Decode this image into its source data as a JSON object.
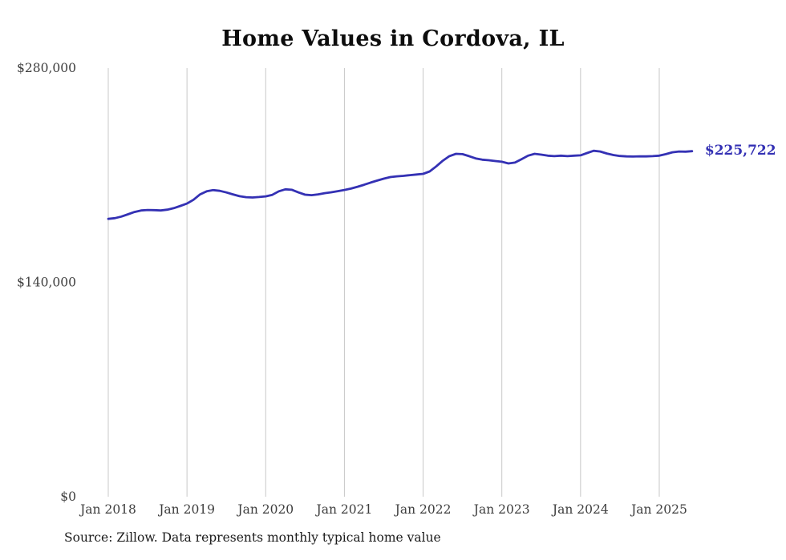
{
  "title": "Home Values in Cordova, IL",
  "end_label": "$225,722",
  "source_note": "Source: Zillow. Data represents monthly typical home value",
  "colors": {
    "line": "#3431b4",
    "grid": "#c8c8c8",
    "axis_text": "#3d3d3d",
    "title_text": "#0d0d0d"
  },
  "chart_data": {
    "type": "line",
    "title": "Home Values in Cordova, IL",
    "xlabel": "",
    "ylabel": "",
    "ylim": [
      0,
      280000
    ],
    "yticks": [
      0,
      140000,
      280000
    ],
    "ytick_labels": [
      "$0",
      "$140,000",
      "$280,000"
    ],
    "xtick_labels": [
      "Jan 2018",
      "Jan 2019",
      "Jan 2020",
      "Jan 2021",
      "Jan 2022",
      "Jan 2023",
      "Jan 2024",
      "Jan 2025"
    ],
    "grid": "vertical-only",
    "legend": "none",
    "annotation": {
      "text": "$225,722",
      "position": "end-of-line"
    },
    "x": [
      "2018-01",
      "2018-02",
      "2018-03",
      "2018-04",
      "2018-05",
      "2018-06",
      "2018-07",
      "2018-08",
      "2018-09",
      "2018-10",
      "2018-11",
      "2018-12",
      "2019-01",
      "2019-02",
      "2019-03",
      "2019-04",
      "2019-05",
      "2019-06",
      "2019-07",
      "2019-08",
      "2019-09",
      "2019-10",
      "2019-11",
      "2019-12",
      "2020-01",
      "2020-02",
      "2020-03",
      "2020-04",
      "2020-05",
      "2020-06",
      "2020-07",
      "2020-08",
      "2020-09",
      "2020-10",
      "2020-11",
      "2020-12",
      "2021-01",
      "2021-02",
      "2021-03",
      "2021-04",
      "2021-05",
      "2021-06",
      "2021-07",
      "2021-08",
      "2021-09",
      "2021-10",
      "2021-11",
      "2021-12",
      "2022-01",
      "2022-02",
      "2022-03",
      "2022-04",
      "2022-05",
      "2022-06",
      "2022-07",
      "2022-08",
      "2022-09",
      "2022-10",
      "2022-11",
      "2022-12",
      "2023-01",
      "2023-02",
      "2023-03",
      "2023-04",
      "2023-05",
      "2023-06",
      "2023-07",
      "2023-08",
      "2023-09",
      "2023-10",
      "2023-11",
      "2023-12",
      "2024-01",
      "2024-02",
      "2024-03",
      "2024-04",
      "2024-05",
      "2024-06",
      "2024-07",
      "2024-08",
      "2024-09",
      "2024-10",
      "2024-11",
      "2024-12",
      "2025-01",
      "2025-02",
      "2025-03",
      "2025-04",
      "2025-05",
      "2025-06"
    ],
    "values": [
      181500,
      182000,
      183000,
      184500,
      186000,
      187000,
      187300,
      187200,
      187000,
      187500,
      188500,
      190000,
      191500,
      194000,
      197500,
      199500,
      200300,
      199800,
      198800,
      197500,
      196300,
      195700,
      195500,
      195800,
      196200,
      197200,
      199500,
      200800,
      200500,
      198800,
      197300,
      197000,
      197500,
      198300,
      198900,
      199600,
      200400,
      201300,
      202500,
      203800,
      205200,
      206500,
      207800,
      208800,
      209300,
      209600,
      210100,
      210500,
      210900,
      212500,
      215800,
      219500,
      222500,
      224000,
      223800,
      222500,
      221000,
      220200,
      219800,
      219300,
      218800,
      217700,
      218300,
      220500,
      222800,
      224000,
      223500,
      222800,
      222500,
      222800,
      222500,
      222800,
      223000,
      224500,
      226000,
      225500,
      224200,
      223200,
      222600,
      222300,
      222200,
      222400,
      222300,
      222500,
      222800,
      223800,
      225000,
      225500,
      225400,
      225722
    ]
  }
}
